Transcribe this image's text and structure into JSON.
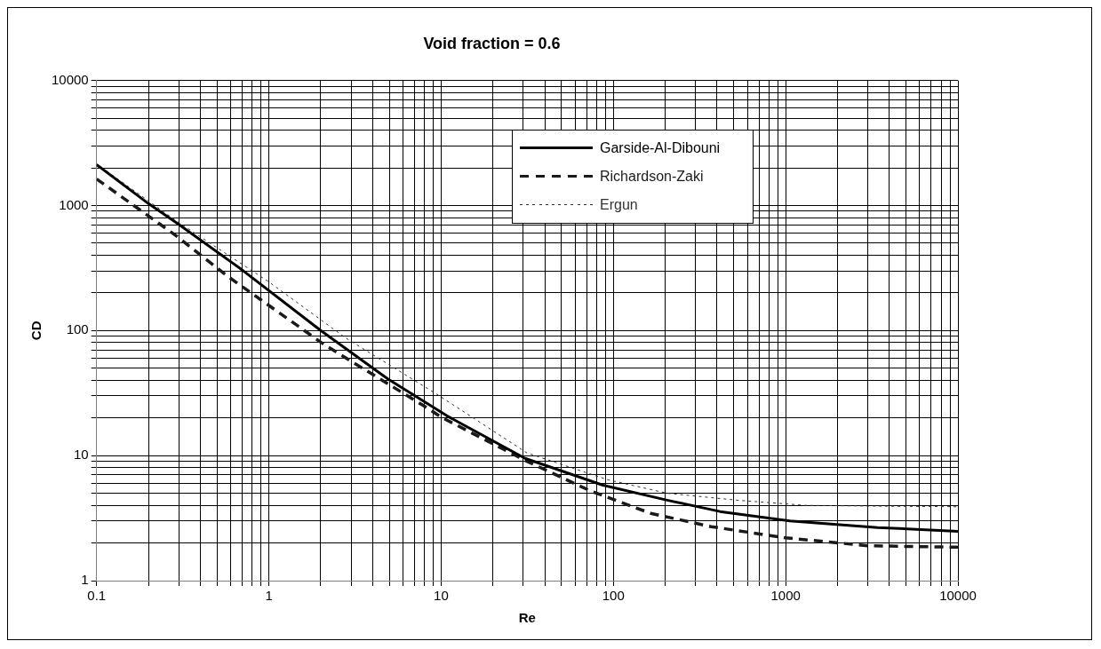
{
  "chart_data": {
    "type": "line",
    "title": "Void fraction = 0.6",
    "xlabel": "Re",
    "ylabel": "CD",
    "log": "xy",
    "grid": true,
    "legend": "top right",
    "marker": "none",
    "xlim": [
      0.1,
      10000
    ],
    "ylim": [
      1,
      10000
    ],
    "xticks": [
      0.1,
      {
        "value": 0.2,
        "label": null
      },
      {
        "value": 0.3,
        "label": null
      },
      {
        "value": 0.4,
        "label": null
      },
      {
        "value": 0.5,
        "label": null
      },
      {
        "value": 0.6,
        "label": null
      },
      {
        "value": 0.7,
        "label": null
      },
      {
        "value": 0.8,
        "label": null
      },
      {
        "value": 0.9,
        "label": null
      },
      1,
      {
        "value": 2,
        "label": null
      },
      {
        "value": 3,
        "label": null
      },
      {
        "value": 4,
        "label": null
      },
      {
        "value": 5,
        "label": null
      },
      {
        "value": 6,
        "label": null
      },
      {
        "value": 7,
        "label": null
      },
      {
        "value": 8,
        "label": null
      },
      {
        "value": 9,
        "label": null
      },
      10,
      {
        "value": 20,
        "label": null
      },
      {
        "value": 30,
        "label": null
      },
      {
        "value": 40,
        "label": null
      },
      {
        "value": 50,
        "label": null
      },
      {
        "value": 60,
        "label": null
      },
      {
        "value": 70,
        "label": null
      },
      {
        "value": 80,
        "label": null
      },
      {
        "value": 90,
        "label": null
      },
      100,
      {
        "value": 200,
        "label": null
      },
      {
        "value": 300,
        "label": null
      },
      {
        "value": 400,
        "label": null
      },
      {
        "value": 500,
        "label": null
      },
      {
        "value": 600,
        "label": null
      },
      {
        "value": 700,
        "label": null
      },
      {
        "value": 800,
        "label": null
      },
      {
        "value": 900,
        "label": null
      },
      1000,
      {
        "value": 2000,
        "label": null
      },
      {
        "value": 3000,
        "label": null
      },
      {
        "value": 4000,
        "label": null
      },
      {
        "value": 5000,
        "label": null
      },
      {
        "value": 6000,
        "label": null
      },
      {
        "value": 7000,
        "label": null
      },
      {
        "value": 8000,
        "label": null
      },
      {
        "value": 9000,
        "label": null
      },
      10000
    ],
    "yticks": [
      1,
      {
        "value": 2,
        "label": null
      },
      {
        "value": 3,
        "label": null
      },
      {
        "value": 4,
        "label": null
      },
      {
        "value": 5,
        "label": null
      },
      {
        "value": 6,
        "label": null
      },
      {
        "value": 7,
        "label": null
      },
      {
        "value": 8,
        "label": null
      },
      {
        "value": 9,
        "label": null
      },
      10,
      {
        "value": 20,
        "label": null
      },
      {
        "value": 30,
        "label": null
      },
      {
        "value": 40,
        "label": null
      },
      {
        "value": 50,
        "label": null
      },
      {
        "value": 60,
        "label": null
      },
      {
        "value": 70,
        "label": null
      },
      {
        "value": 80,
        "label": null
      },
      {
        "value": 90,
        "label": null
      },
      100,
      {
        "value": 200,
        "label": null
      },
      {
        "value": 300,
        "label": null
      },
      {
        "value": 400,
        "label": null
      },
      {
        "value": 500,
        "label": null
      },
      {
        "value": 600,
        "label": null
      },
      {
        "value": 700,
        "label": null
      },
      {
        "value": 800,
        "label": null
      },
      {
        "value": 900,
        "label": null
      },
      1000,
      {
        "value": 2000,
        "label": null
      },
      {
        "value": 3000,
        "label": null
      },
      {
        "value": 4000,
        "label": null
      },
      {
        "value": 5000,
        "label": null
      },
      {
        "value": 6000,
        "label": null
      },
      {
        "value": 7000,
        "label": null
      },
      {
        "value": 8000,
        "label": null
      },
      {
        "value": 9000,
        "label": null
      },
      10000
    ],
    "series": [
      {
        "name": "Garside-Al-Dibouni",
        "color": "#000000",
        "line_style": "solid",
        "x": [
          0.1,
          0.2,
          0.3,
          0.7,
          2,
          4.9,
          10.8,
          30.7,
          87,
          205,
          416,
          1060,
          3420,
          10000
        ],
        "values": [
          2120,
          1035,
          705,
          305,
          100,
          41,
          20.8,
          9.5,
          5.8,
          4.4,
          3.57,
          3.0,
          2.66,
          2.48
        ]
      },
      {
        "name": "Richardson-Zaki",
        "color": "#1a1a1a",
        "line_style": "dashed",
        "x": [
          0.1,
          0.29,
          0.58,
          2.1,
          8,
          10.2,
          31.5,
          74,
          165,
          370,
          1000,
          3000,
          10000
        ],
        "values": [
          1630,
          572,
          270,
          77,
          24.8,
          20,
          9,
          5.2,
          3.45,
          2.7,
          2.2,
          1.9,
          1.85
        ]
      },
      {
        "name": "Ergun",
        "color": "#333333",
        "line_style": "dotted",
        "x": [
          0.1,
          0.3,
          1,
          2.8,
          9.6,
          31.5,
          93,
          205,
          520,
          1300,
          3000,
          10000
        ],
        "values": [
          2150,
          730,
          245,
          87,
          30.5,
          10.5,
          6.4,
          5.0,
          4.4,
          4.0,
          3.95,
          3.9
        ]
      }
    ]
  }
}
